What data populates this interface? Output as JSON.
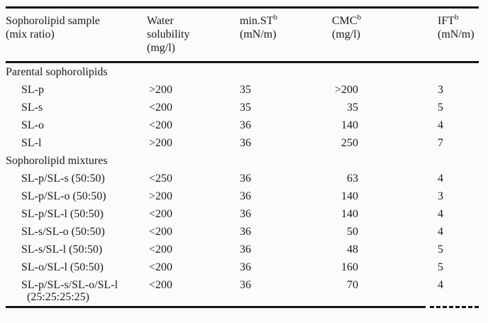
{
  "page": {
    "background": "#fbfbfa",
    "ink_color": "#1b1b1b",
    "rule_color": "#141414"
  },
  "table": {
    "columns": [
      {
        "id": "sample",
        "line1": "Sophorolipid sample",
        "sup": "",
        "line2": "(mix ratio)"
      },
      {
        "id": "water",
        "line1": "Water solubility",
        "sup": "",
        "line2": "(mg/l)"
      },
      {
        "id": "st",
        "line1": "min.ST",
        "sup": "b",
        "line2": "(mN/m)"
      },
      {
        "id": "cmc",
        "line1": "CMC",
        "sup": "b",
        "line2": "(mg/l)"
      },
      {
        "id": "ift",
        "line1": "IFT",
        "sup": "b",
        "line2": "(mN/m)"
      }
    ],
    "rows": [
      {
        "type": "section",
        "label": "Parental sophorolipids"
      },
      {
        "type": "data",
        "label": "SL-p",
        "water": ">200",
        "st": "35",
        "cmc": ">200",
        "ift": "3"
      },
      {
        "type": "data",
        "label": "SL-s",
        "water": "<200",
        "st": "35",
        "cmc": "35",
        "ift": "5"
      },
      {
        "type": "data",
        "label": "SL-o",
        "water": "<200",
        "st": "36",
        "cmc": "140",
        "ift": "4"
      },
      {
        "type": "data",
        "label": "SL-l",
        "water": ">200",
        "st": "36",
        "cmc": "250",
        "ift": "7"
      },
      {
        "type": "section",
        "label": "Sophorolipid mixtures"
      },
      {
        "type": "data",
        "label": "SL-p/SL-s (50:50)",
        "water": "<250",
        "st": "36",
        "cmc": "63",
        "ift": "4"
      },
      {
        "type": "data",
        "label": "SL-p/SL-o (50:50)",
        "water": ">200",
        "st": "36",
        "cmc": "140",
        "ift": "3"
      },
      {
        "type": "data",
        "label": "SL-p/SL-l (50:50)",
        "water": "<200",
        "st": "36",
        "cmc": "140",
        "ift": "4"
      },
      {
        "type": "data",
        "label": "SL-s/SL-o (50:50)",
        "water": "<200",
        "st": "36",
        "cmc": "50",
        "ift": "4"
      },
      {
        "type": "data",
        "label": "SL-s/SL-l (50:50)",
        "water": "<200",
        "st": "36",
        "cmc": "48",
        "ift": "5"
      },
      {
        "type": "data",
        "label": "SL-o/SL-l (50:50)",
        "water": "<200",
        "st": "36",
        "cmc": "160",
        "ift": "5"
      },
      {
        "type": "data",
        "label": "SL-p/SL-s/SL-o/SL-l",
        "label2": "(25:25:25:25)",
        "water": "<200",
        "st": "36",
        "cmc": "70",
        "ift": "4"
      }
    ]
  }
}
